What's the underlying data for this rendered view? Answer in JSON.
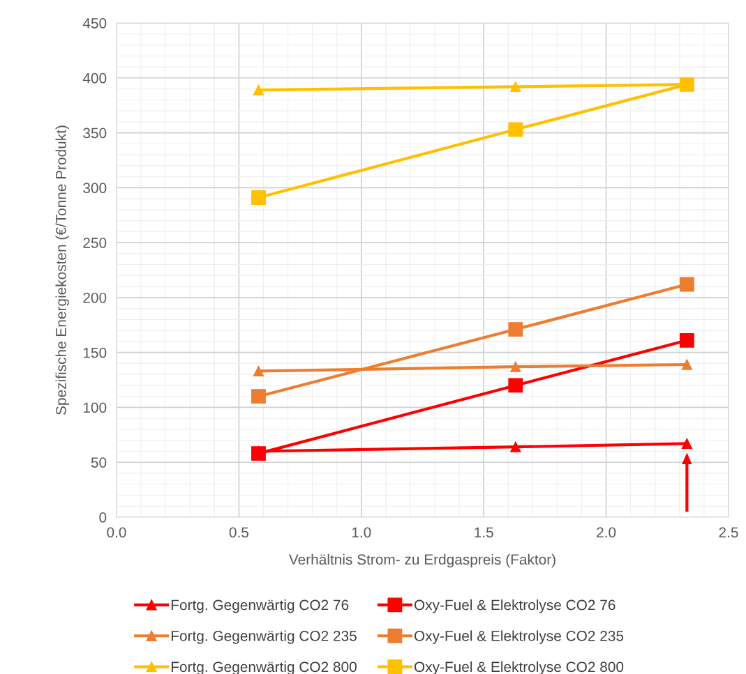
{
  "chart_data": {
    "type": "line",
    "xlabel": "Verhältnis Strom- zu Erdgaspreis (Faktor)",
    "ylabel": "Spezifische Energiekosten (€/Tonne Produkt)",
    "x": [
      0.58,
      1.63,
      2.33
    ],
    "series": [
      {
        "name": "Fortg. Gegenwärtig CO2 76",
        "color": "#ff0000",
        "marker": "triangle",
        "values": [
          60,
          64,
          67
        ]
      },
      {
        "name": "Oxy-Fuel & Elektrolyse CO2 76",
        "color": "#ff0000",
        "marker": "square",
        "values": [
          58,
          120,
          161
        ]
      },
      {
        "name": "Fortg. Gegenwärtig CO2 235",
        "color": "#ed7d31",
        "marker": "triangle",
        "values": [
          133,
          137,
          139
        ]
      },
      {
        "name": "Oxy-Fuel & Elektrolyse CO2 235",
        "color": "#ed7d31",
        "marker": "square",
        "values": [
          110,
          171,
          212
        ]
      },
      {
        "name": "Fortg. Gegenwärtig CO2 800",
        "color": "#ffc000",
        "marker": "triangle",
        "values": [
          389,
          392,
          394
        ]
      },
      {
        "name": "Oxy-Fuel & Elektrolyse CO2 800",
        "color": "#ffc000",
        "marker": "square",
        "values": [
          291,
          353,
          394
        ]
      }
    ],
    "xlim": [
      0,
      2.5
    ],
    "xticks": [
      {
        "value": 0,
        "label": "0.0"
      },
      {
        "value": 0.5,
        "label": "0.5"
      },
      {
        "value": 1,
        "label": "1.0"
      },
      {
        "value": 1.5,
        "label": "1.5"
      },
      {
        "value": 2,
        "label": "2.0"
      },
      {
        "value": 2.5,
        "label": "2.5"
      }
    ],
    "ylim": [
      0,
      450
    ],
    "yticks": [
      0,
      50,
      100,
      150,
      200,
      250,
      300,
      350,
      400,
      450
    ],
    "grid": true,
    "legend": "bottom",
    "line_style": "solid"
  }
}
